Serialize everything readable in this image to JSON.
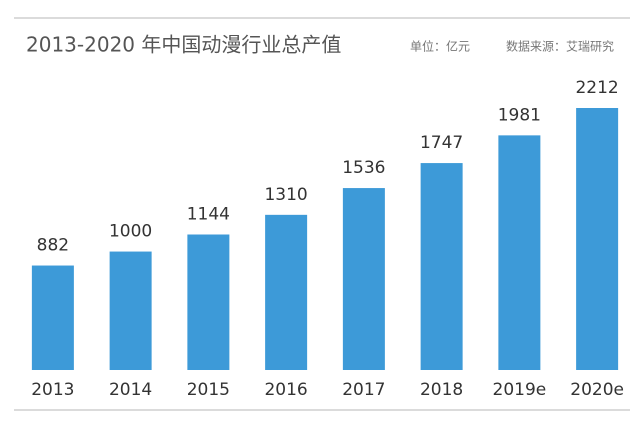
{
  "chart_data": {
    "type": "bar",
    "title": "2013-2020 年中国动漫行业总产值",
    "unit": "单位：亿元",
    "source": "数据来源：艾瑞研究",
    "categories": [
      "2013",
      "2014",
      "2015",
      "2016",
      "2017",
      "2018",
      "2019e",
      "2020e"
    ],
    "values": [
      882,
      1000,
      1144,
      1310,
      1536,
      1747,
      1981,
      2212
    ],
    "color": "#3d9ad8"
  }
}
